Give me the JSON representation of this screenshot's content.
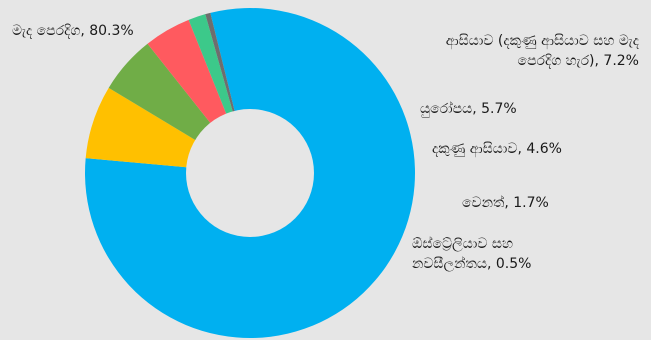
{
  "chart_data": {
    "type": "pie",
    "variant": "donut",
    "title": "",
    "legend": "none",
    "slices": [
      {
        "label": "මැද පෙරදිග, 80.3%",
        "category": "මැද පෙරදිග",
        "value": 80.3,
        "color": "#00b0f0"
      },
      {
        "label": "ආසියාව (දකුණු ආසියාව සහ මැද පෙරදිග හැර), 7.2%",
        "label_line1": "ආසියාව (දකුණු ආසියාව සහ මැද",
        "label_line2": "පෙරදිග හැර), 7.2%",
        "category": "ආසියාව (දකුණු ආසියාව සහ මැද පෙරදිග හැර)",
        "value": 7.2,
        "color": "#ffc000"
      },
      {
        "label": "යුරෝපය, 5.7%",
        "category": "යුරෝපය",
        "value": 5.7,
        "color": "#70ad47"
      },
      {
        "label": "දකුණු ආසියාව, 4.6%",
        "category": "දකුණු ආසියාව",
        "value": 4.6,
        "color": "#ff5a5f"
      },
      {
        "label": "වෙනත්, 1.7%",
        "category": "වෙනත්",
        "value": 1.7,
        "color": "#3cc98a"
      },
      {
        "label": "ඕස්ට්‍රේලියාව සහ නවසීලන්තය, 0.5%",
        "label_line1": "ඕස්ට්‍රේලියාව සහ",
        "label_line2": "නවසීලන්තය, 0.5%",
        "category": "ඕස්ට්‍රේලියාව සහ නවසීලන්තය",
        "value": 0.5,
        "color": "#6e6e6e"
      }
    ]
  }
}
